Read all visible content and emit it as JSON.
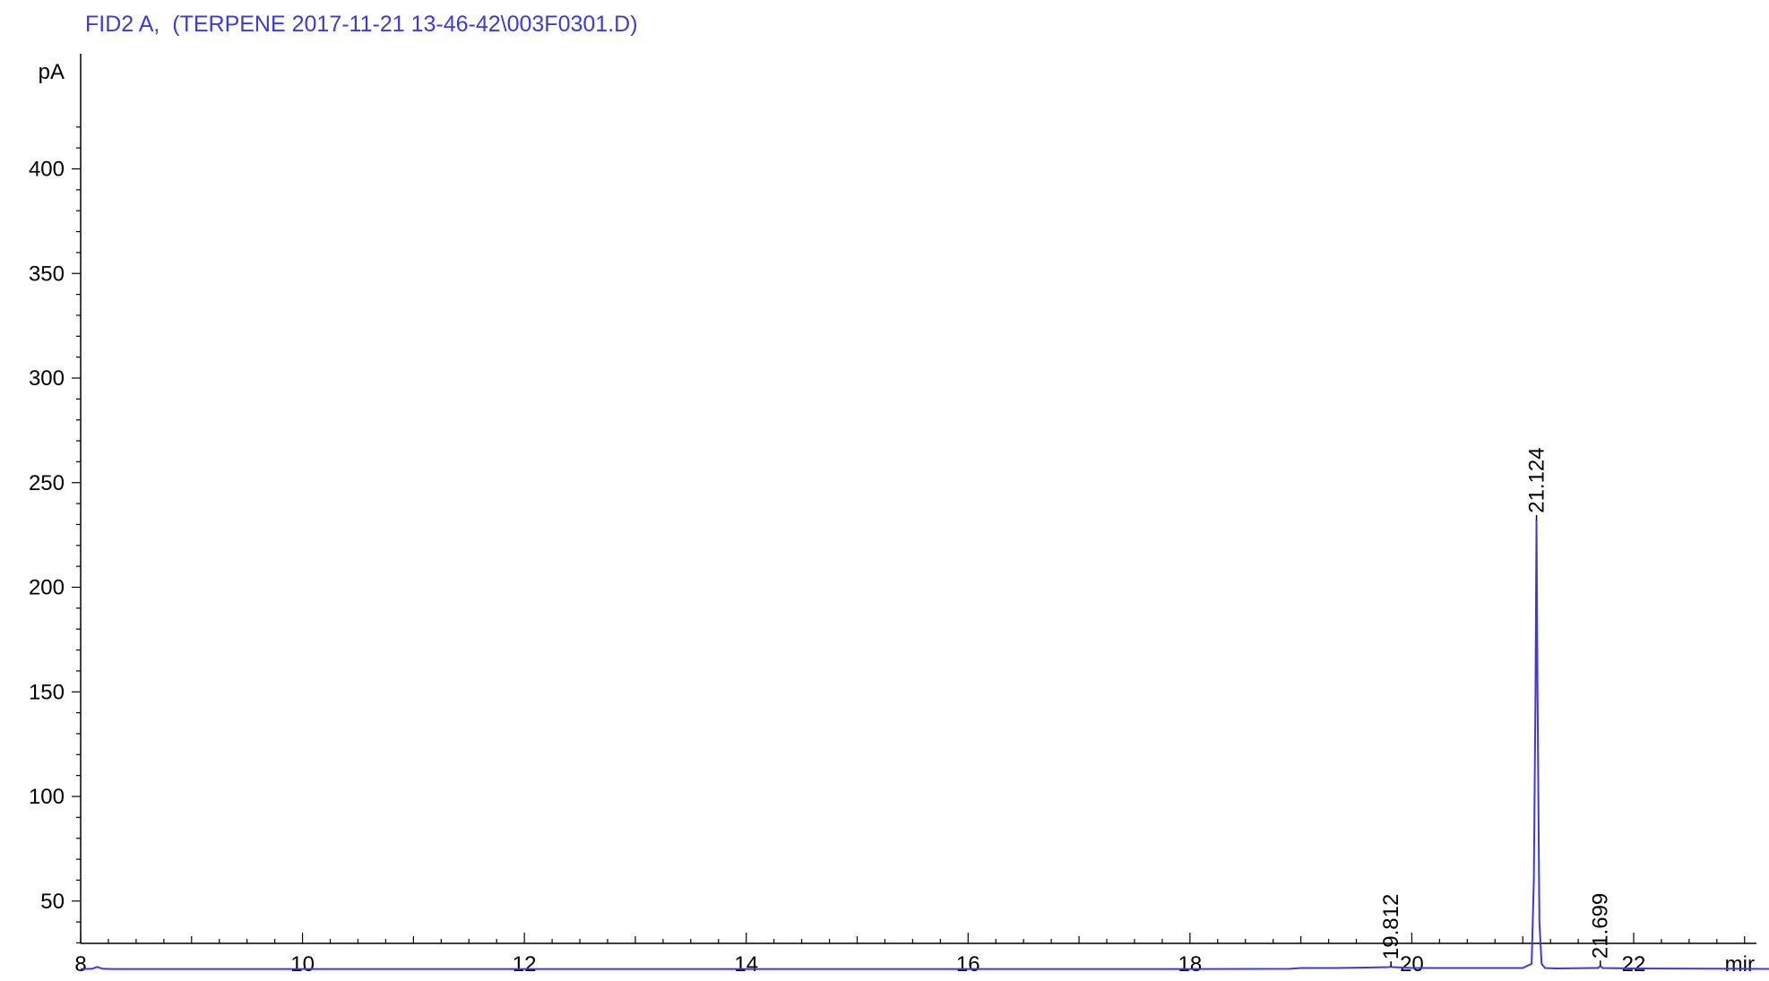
{
  "chart_data": {
    "type": "line",
    "title": "FID2 A,  (TERPENE 2017-11-21 13-46-42\\003F0301.D)",
    "ylabel": "pA",
    "xlabel": "mir",
    "xlim": [
      8,
      24
    ],
    "ylim": [
      15,
      425
    ],
    "x_ticks": [
      8,
      10,
      12,
      14,
      16,
      18,
      20,
      22
    ],
    "y_ticks": [
      50,
      100,
      150,
      200,
      250,
      300,
      350,
      400
    ],
    "baseline": 17.5,
    "peaks": [
      {
        "rt": 19.812,
        "label": "19.812",
        "height": 18.6,
        "width": 0.02
      },
      {
        "rt": 21.124,
        "label": "21.124",
        "height": 232,
        "width": 0.055
      },
      {
        "rt": 21.699,
        "label": "21.699",
        "height": 19,
        "width": 0.02
      }
    ],
    "series": [
      {
        "color": "#3b3bdb",
        "x": [
          8.0,
          8.1,
          8.15,
          8.2,
          8.3,
          9.0,
          10.0,
          11.0,
          12.0,
          13.0,
          14.0,
          15.0,
          16.0,
          17.0,
          18.0,
          18.9,
          19.0,
          19.3,
          19.6,
          19.79,
          19.812,
          19.83,
          20.0,
          20.5,
          21.0,
          21.08,
          21.1,
          21.115,
          21.124,
          21.133,
          21.15,
          21.17,
          21.2,
          21.3,
          21.68,
          21.699,
          21.72,
          22.0,
          23.0,
          24.0
        ],
        "y": [
          17.5,
          17.6,
          18.5,
          17.6,
          17.5,
          17.5,
          17.5,
          17.5,
          17.5,
          17.5,
          17.5,
          17.5,
          17.5,
          17.5,
          17.5,
          17.6,
          18.0,
          18.0,
          18.2,
          18.4,
          18.6,
          18.4,
          18.0,
          18.0,
          18.0,
          20.0,
          60.0,
          150.0,
          232.0,
          150.0,
          40.0,
          20.0,
          18.0,
          17.8,
          18.0,
          19.0,
          18.0,
          17.8,
          17.6,
          17.5
        ]
      }
    ]
  }
}
